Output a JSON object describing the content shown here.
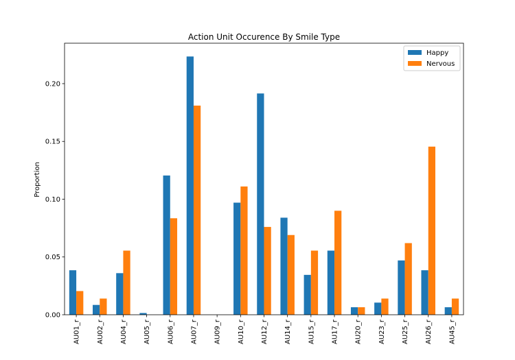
{
  "chart_data": {
    "type": "bar",
    "title": "Action Unit Occurence By Smile Type",
    "xlabel": "",
    "ylabel": "Proportion",
    "ylim": [
      0,
      0.235
    ],
    "yticks": [
      "0.00",
      "0.05",
      "0.10",
      "0.15",
      "0.20"
    ],
    "grid": false,
    "legend": "top-right",
    "categories": [
      "AU01_r",
      "AU02_r",
      "AU04_r",
      "AU05_r",
      "AU06_r",
      "AU07_r",
      "AU09_r",
      "AU10_r",
      "AU12_r",
      "AU14_r",
      "AU15_r",
      "AU17_r",
      "AU20_r",
      "AU23_r",
      "AU25_r",
      "AU26_r",
      "AU45_r"
    ],
    "series": [
      {
        "name": "Happy",
        "color": "#1f77b4",
        "values": [
          0.0385,
          0.0085,
          0.036,
          0.0015,
          0.1205,
          0.2235,
          0.0,
          0.097,
          0.1915,
          0.084,
          0.0345,
          0.0555,
          0.0065,
          0.0105,
          0.047,
          0.0385,
          0.0065
        ]
      },
      {
        "name": "Nervous",
        "color": "#ff7f0e",
        "values": [
          0.0205,
          0.014,
          0.0555,
          0.0,
          0.0835,
          0.181,
          0.0,
          0.111,
          0.076,
          0.069,
          0.0555,
          0.09,
          0.0065,
          0.014,
          0.062,
          0.1455,
          0.014
        ]
      }
    ]
  }
}
